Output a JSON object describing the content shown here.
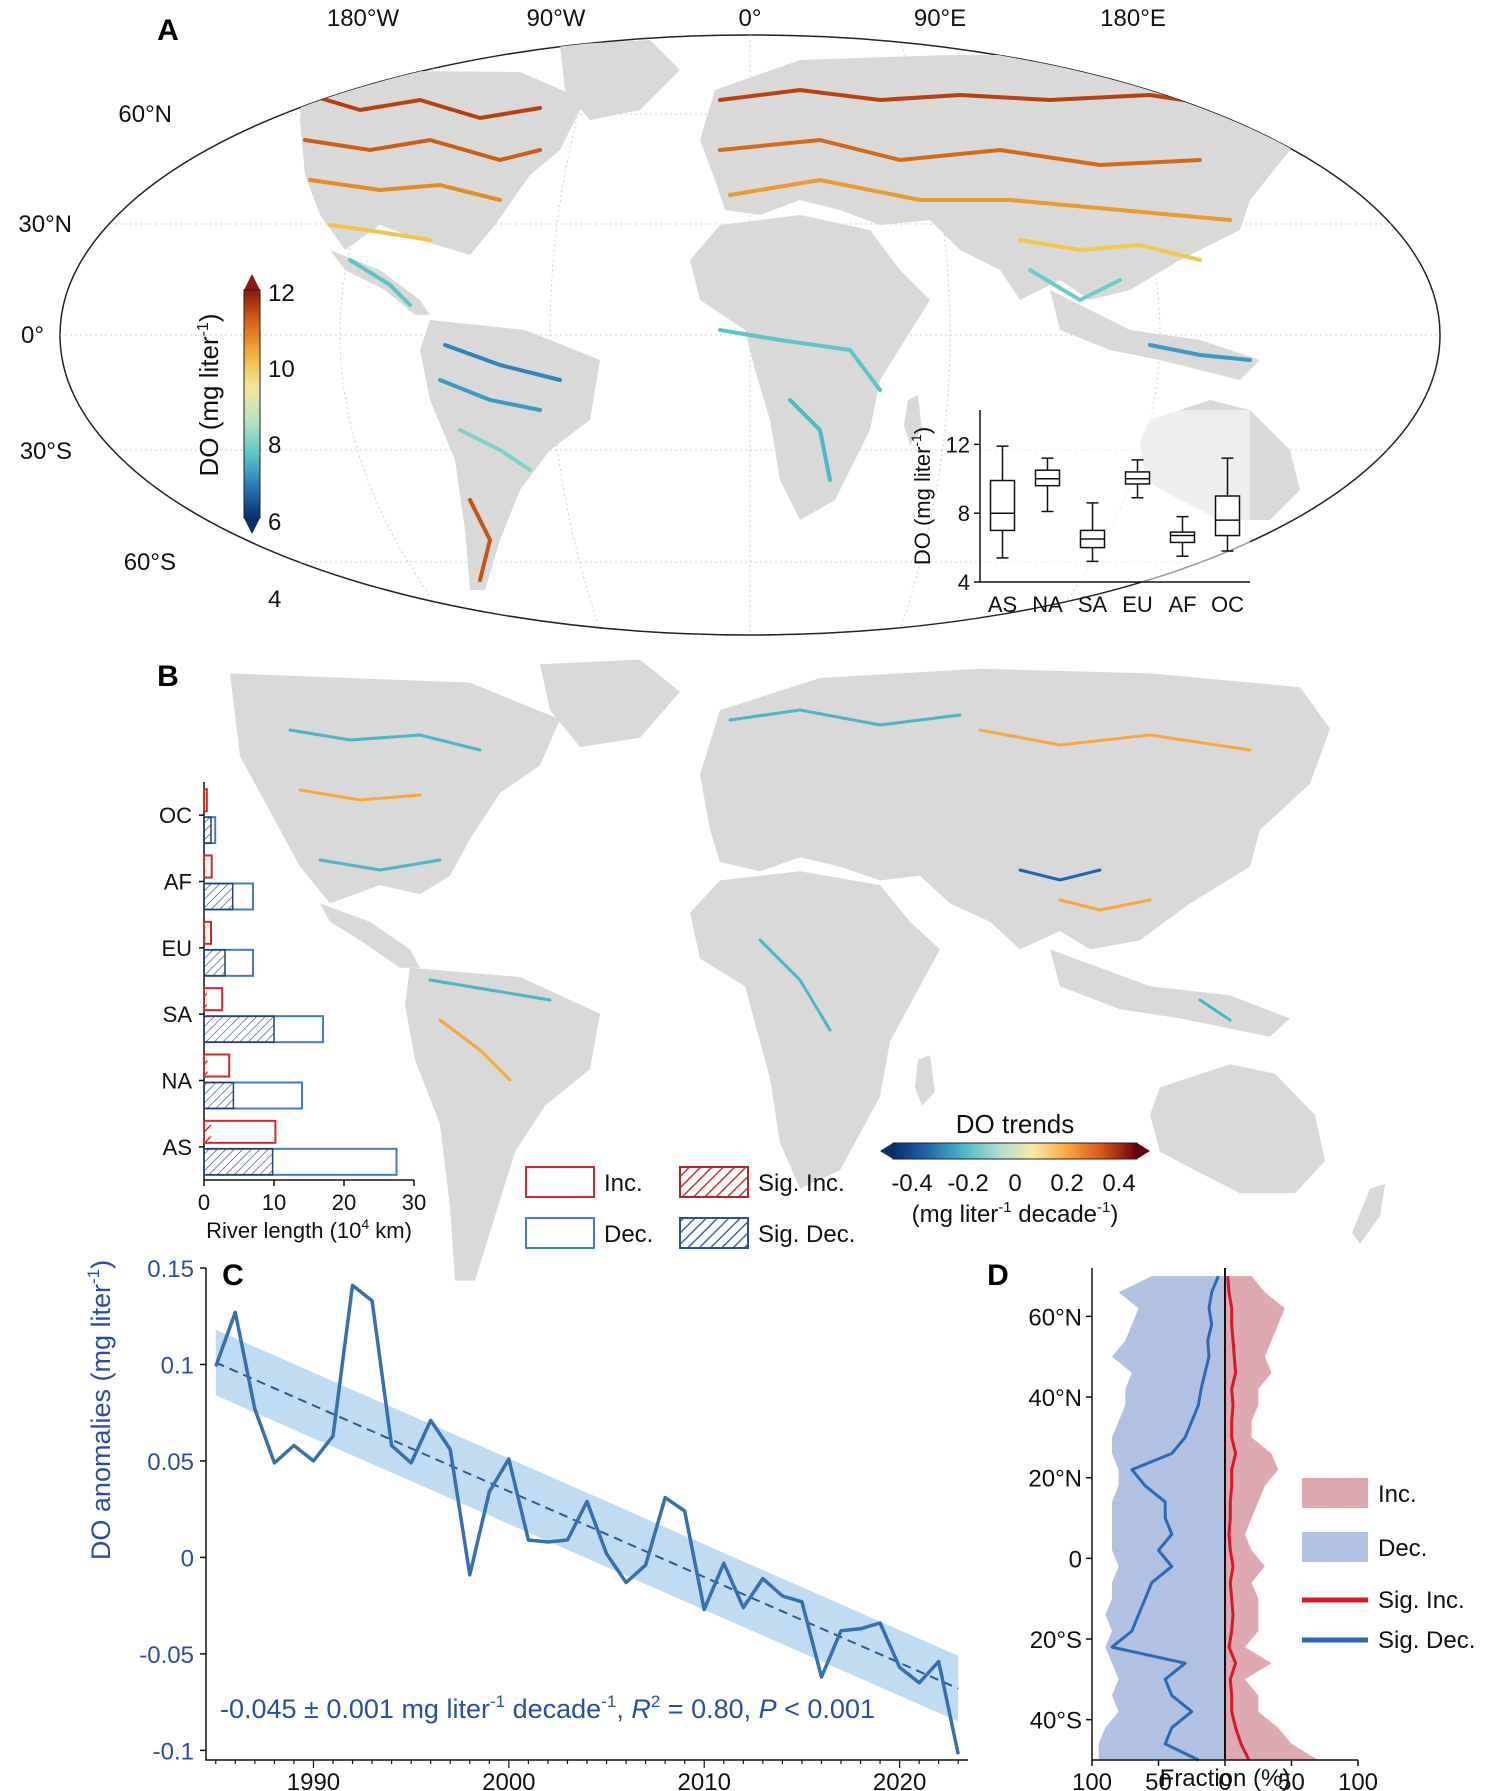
{
  "panels": {
    "a": {
      "label": "A",
      "lon_ticks": [
        "180°W",
        "90°W",
        "0°",
        "90°E",
        "180°E"
      ],
      "lat_ticks": [
        "60°N",
        "30°N",
        "0°",
        "30°S",
        "60°S"
      ],
      "colorbar": {
        "label": "DO (mg liter",
        "label_sup": "-1",
        "label_end": ")",
        "ticks": [
          "12",
          "10",
          "8",
          "6",
          "4"
        ],
        "range": [
          4,
          12
        ],
        "colors": [
          "#08306b",
          "#2b7bb9",
          "#5ec8c8",
          "#b8e3c2",
          "#f5e6a0",
          "#f2b43a",
          "#d9641b",
          "#8b1a0e"
        ]
      },
      "land_color": "#d9d9d9"
    },
    "b": {
      "label": "B",
      "legend": {
        "inc": "Inc.",
        "dec": "Dec.",
        "sig_inc": "Sig. Inc.",
        "sig_dec": "Sig. Dec."
      },
      "colorbar": {
        "title": "DO trends",
        "ticks": [
          "-0.4",
          "-0.2",
          "0",
          "0.2",
          "0.4"
        ],
        "range": [
          -0.4,
          0.4
        ],
        "unit_a": "(mg liter",
        "unit_sup1": "-1",
        "unit_b": " decade",
        "unit_sup2": "-1",
        "unit_c": ")",
        "colors": [
          "#08306b",
          "#2166ac",
          "#4bb6c6",
          "#a8dcd0",
          "#fde9a9",
          "#f6a83c",
          "#d9541a",
          "#67000d"
        ]
      }
    },
    "c": {
      "label": "C",
      "annotation": {
        "slope_a": "-0.045 ± 0.001 mg liter",
        "sup1": "-1",
        "slope_b": " decade",
        "sup2": "-1",
        "slope_c": ", ",
        "r": "R",
        "r_sup": "2",
        "r_val": " = 0.80, ",
        "p": "P",
        "p_val": " < 0.001"
      },
      "ylabel_a": "DO anomalies (mg liter",
      "ylabel_sup": "-1",
      "ylabel_b": ")"
    },
    "d": {
      "label": "D",
      "legend": {
        "inc": "Inc.",
        "dec": "Dec.",
        "sig_inc": "Sig. Inc.",
        "sig_dec": "Sig. Dec."
      }
    }
  },
  "chart_data": [
    {
      "type": "box",
      "panel": "A-inset",
      "categories": [
        "AS",
        "NA",
        "SA",
        "EU",
        "AF",
        "OC"
      ],
      "ylabel": "DO (mg liter-1)",
      "ylim": [
        4,
        14
      ],
      "yticks": [
        4,
        8,
        12
      ],
      "boxes": [
        {
          "min": 5.4,
          "q1": 7.0,
          "median": 8.0,
          "q3": 9.9,
          "max": 11.9
        },
        {
          "min": 8.1,
          "q1": 9.6,
          "median": 10.0,
          "q3": 10.5,
          "max": 11.2
        },
        {
          "min": 5.2,
          "q1": 6.0,
          "median": 6.5,
          "q3": 7.0,
          "max": 8.6
        },
        {
          "min": 8.9,
          "q1": 9.7,
          "median": 10.0,
          "q3": 10.4,
          "max": 11.1
        },
        {
          "min": 5.5,
          "q1": 6.3,
          "median": 6.7,
          "q3": 6.9,
          "max": 7.8
        },
        {
          "min": 5.8,
          "q1": 6.7,
          "median": 7.6,
          "q3": 9.0,
          "max": 11.2
        }
      ]
    },
    {
      "type": "bar",
      "panel": "B-inset",
      "orientation": "horizontal",
      "categories": [
        "OC",
        "AF",
        "EU",
        "SA",
        "NA",
        "AS"
      ],
      "xlabel": "River length (10",
      "xlabel_sup": "4",
      "xlabel_end": " km)",
      "xlim": [
        0,
        30
      ],
      "xticks": [
        0,
        10,
        20,
        30
      ],
      "series": [
        {
          "name": "Inc.",
          "values": [
            0.4,
            1.1,
            1.0,
            2.6,
            3.6,
            10.2
          ]
        },
        {
          "name": "Dec.",
          "values": [
            1.6,
            7.0,
            7.0,
            17.0,
            14.0,
            27.5
          ]
        },
        {
          "name": "Sig. Inc.",
          "values": [
            0.1,
            0.2,
            0.2,
            0.4,
            0.5,
            1.0
          ]
        },
        {
          "name": "Sig. Dec.",
          "values": [
            1.0,
            4.1,
            3.0,
            10.0,
            4.2,
            9.8
          ]
        }
      ]
    },
    {
      "type": "line",
      "panel": "C",
      "ylabel": "DO anomalies (mg liter-1)",
      "xlim": [
        1985,
        2023
      ],
      "ylim": [
        -0.105,
        0.15
      ],
      "xticks": [
        1990,
        2000,
        2010,
        2020
      ],
      "yticks": [
        0.15,
        0.1,
        0.05,
        0,
        -0.05,
        -0.1
      ],
      "x": [
        1985,
        1986,
        1987,
        1988,
        1989,
        1990,
        1991,
        1992,
        1993,
        1994,
        1995,
        1996,
        1997,
        1998,
        1999,
        2000,
        2001,
        2002,
        2003,
        2004,
        2005,
        2006,
        2007,
        2008,
        2009,
        2010,
        2011,
        2012,
        2013,
        2014,
        2015,
        2016,
        2017,
        2018,
        2019,
        2020,
        2021,
        2022,
        2023
      ],
      "values": [
        0.099,
        0.127,
        0.077,
        0.049,
        0.058,
        0.05,
        0.063,
        0.141,
        0.133,
        0.058,
        0.049,
        0.071,
        0.056,
        -0.009,
        0.034,
        0.051,
        0.009,
        0.008,
        0.009,
        0.029,
        0.002,
        -0.013,
        -0.004,
        0.031,
        0.024,
        -0.027,
        -0.003,
        -0.026,
        -0.011,
        -0.02,
        -0.023,
        -0.062,
        -0.038,
        -0.037,
        -0.034,
        -0.057,
        -0.065,
        -0.054,
        -0.102
      ],
      "trend": {
        "x": [
          1985,
          2023
        ],
        "y": [
          0.101,
          -0.068
        ]
      },
      "band_halfwidth": 0.017
    },
    {
      "type": "area",
      "panel": "D",
      "orientation": "horizontal",
      "xlabel": "Fraction (%)",
      "xticks": [
        "100",
        "50",
        "0",
        "50",
        "100"
      ],
      "xlim": [
        -100,
        100
      ],
      "ylim": [
        -50,
        72
      ],
      "yticks": [
        {
          "value": 60,
          "label": "60°N"
        },
        {
          "value": 40,
          "label": "40°N"
        },
        {
          "value": 20,
          "label": "20°N"
        },
        {
          "value": 0,
          "label": "0"
        },
        {
          "value": -20,
          "label": "20°S"
        },
        {
          "value": -40,
          "label": "40°S"
        }
      ],
      "lat": [
        70,
        66,
        62,
        58,
        54,
        50,
        46,
        42,
        38,
        34,
        30,
        26,
        22,
        18,
        14,
        10,
        6,
        2,
        -2,
        -6,
        -10,
        -14,
        -18,
        -22,
        -26,
        -30,
        -34,
        -38,
        -42,
        -46,
        -50
      ],
      "inc": [
        20,
        30,
        45,
        40,
        35,
        30,
        35,
        25,
        25,
        20,
        20,
        35,
        40,
        30,
        25,
        20,
        15,
        20,
        30,
        20,
        25,
        25,
        25,
        15,
        35,
        15,
        25,
        25,
        40,
        50,
        70
      ],
      "dec": [
        55,
        80,
        65,
        70,
        75,
        85,
        70,
        75,
        75,
        80,
        85,
        85,
        80,
        80,
        85,
        85,
        85,
        85,
        80,
        85,
        85,
        90,
        85,
        90,
        85,
        80,
        85,
        80,
        90,
        95,
        95
      ],
      "sig_inc": [
        2,
        3,
        5,
        5,
        6,
        7,
        8,
        5,
        6,
        5,
        5,
        8,
        5,
        5,
        4,
        4,
        3,
        4,
        6,
        4,
        5,
        6,
        5,
        3,
        8,
        4,
        5,
        5,
        8,
        12,
        18
      ],
      "sig_dec": [
        5,
        10,
        12,
        10,
        13,
        12,
        15,
        18,
        20,
        25,
        30,
        40,
        70,
        60,
        45,
        45,
        40,
        50,
        40,
        55,
        60,
        65,
        70,
        85,
        30,
        45,
        40,
        25,
        40,
        45,
        20
      ]
    }
  ]
}
